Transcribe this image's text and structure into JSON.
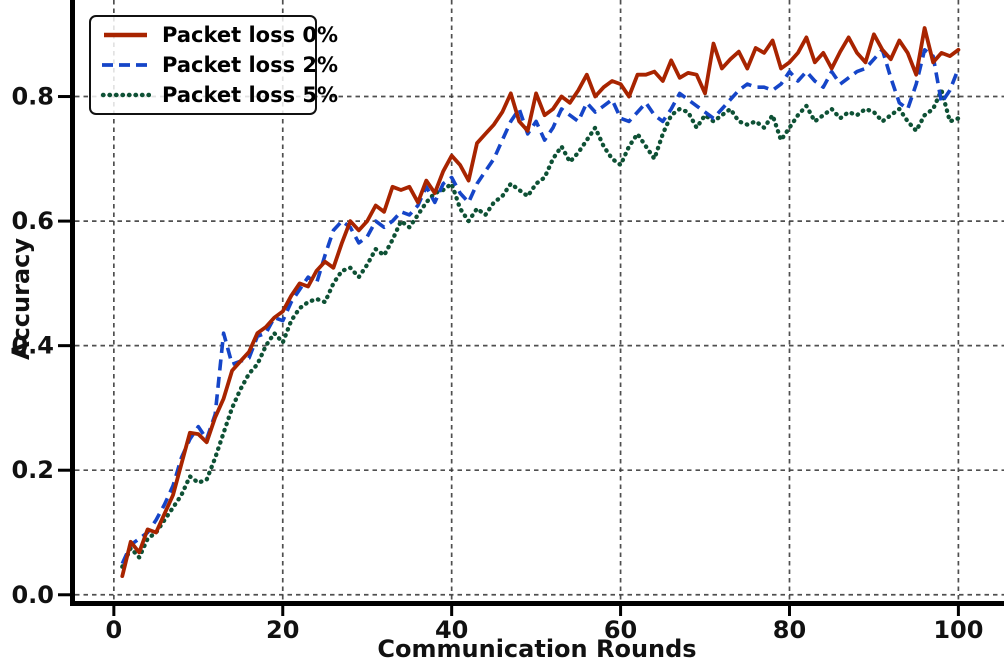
{
  "figure": {
    "background": "#ffffff",
    "grid_color": "#3d3d3d",
    "spine_color": "#000000",
    "text_color": "#111111"
  },
  "chart_data": {
    "type": "line",
    "title": "",
    "xlabel": "Communication Rounds",
    "ylabel": "Accuracy",
    "xlim": [
      -4.6,
      105.4
    ],
    "ylim": [
      -0.01,
      0.955
    ],
    "xticks": [
      0,
      20,
      40,
      60,
      80,
      100
    ],
    "xtick_labels": [
      "0",
      "20",
      "40",
      "60",
      "80",
      "100"
    ],
    "yticks": [
      0.0,
      0.2,
      0.4,
      0.6,
      0.8
    ],
    "ytick_labels": [
      "0.0",
      "0.2",
      "0.4",
      "0.6",
      "0.8"
    ],
    "grid": true,
    "grid_style": "dashed",
    "legend_position": "upper left",
    "x_first": 1,
    "x_step": 1,
    "series": [
      {
        "name": "Packet loss 0%",
        "color": "#a82400",
        "line_style": "solid",
        "values": [
          0.03,
          0.085,
          0.068,
          0.105,
          0.1,
          0.13,
          0.16,
          0.21,
          0.26,
          0.258,
          0.245,
          0.285,
          0.315,
          0.36,
          0.375,
          0.39,
          0.42,
          0.43,
          0.445,
          0.455,
          0.48,
          0.5,
          0.495,
          0.52,
          0.535,
          0.525,
          0.565,
          0.6,
          0.585,
          0.6,
          0.625,
          0.615,
          0.655,
          0.65,
          0.655,
          0.63,
          0.665,
          0.645,
          0.68,
          0.705,
          0.69,
          0.665,
          0.725,
          0.74,
          0.755,
          0.775,
          0.805,
          0.76,
          0.745,
          0.805,
          0.77,
          0.78,
          0.8,
          0.79,
          0.81,
          0.835,
          0.8,
          0.815,
          0.825,
          0.82,
          0.8,
          0.835,
          0.835,
          0.84,
          0.825,
          0.858,
          0.83,
          0.838,
          0.835,
          0.805,
          0.885,
          0.845,
          0.86,
          0.872,
          0.845,
          0.878,
          0.87,
          0.89,
          0.845,
          0.855,
          0.87,
          0.895,
          0.855,
          0.87,
          0.845,
          0.872,
          0.895,
          0.87,
          0.855,
          0.9,
          0.875,
          0.86,
          0.89,
          0.87,
          0.835,
          0.91,
          0.855,
          0.87,
          0.865,
          0.875
        ]
      },
      {
        "name": "Packet loss 2%",
        "color": "#1545c8",
        "line_style": "dashed",
        "values": [
          0.05,
          0.08,
          0.09,
          0.1,
          0.12,
          0.145,
          0.175,
          0.22,
          0.25,
          0.27,
          0.25,
          0.29,
          0.42,
          0.37,
          0.375,
          0.38,
          0.415,
          0.42,
          0.445,
          0.44,
          0.47,
          0.49,
          0.51,
          0.5,
          0.545,
          0.585,
          0.6,
          0.59,
          0.565,
          0.575,
          0.6,
          0.59,
          0.6,
          0.615,
          0.61,
          0.625,
          0.655,
          0.63,
          0.66,
          0.67,
          0.645,
          0.63,
          0.66,
          0.68,
          0.7,
          0.73,
          0.76,
          0.78,
          0.74,
          0.76,
          0.73,
          0.75,
          0.78,
          0.77,
          0.76,
          0.79,
          0.775,
          0.785,
          0.795,
          0.765,
          0.76,
          0.775,
          0.79,
          0.77,
          0.76,
          0.78,
          0.805,
          0.795,
          0.785,
          0.775,
          0.765,
          0.78,
          0.795,
          0.81,
          0.82,
          0.815,
          0.815,
          0.81,
          0.82,
          0.84,
          0.825,
          0.84,
          0.825,
          0.815,
          0.84,
          0.82,
          0.83,
          0.84,
          0.845,
          0.86,
          0.875,
          0.83,
          0.79,
          0.78,
          0.82,
          0.875,
          0.865,
          0.79,
          0.81,
          0.845
        ]
      },
      {
        "name": "Packet loss 5%",
        "color": "#0e5135",
        "line_style": "dotted",
        "values": [
          0.045,
          0.075,
          0.06,
          0.09,
          0.1,
          0.12,
          0.14,
          0.16,
          0.19,
          0.18,
          0.185,
          0.22,
          0.26,
          0.3,
          0.33,
          0.355,
          0.37,
          0.4,
          0.42,
          0.405,
          0.44,
          0.46,
          0.47,
          0.475,
          0.47,
          0.5,
          0.52,
          0.525,
          0.51,
          0.53,
          0.555,
          0.545,
          0.57,
          0.6,
          0.59,
          0.61,
          0.63,
          0.645,
          0.65,
          0.66,
          0.62,
          0.6,
          0.62,
          0.61,
          0.63,
          0.64,
          0.66,
          0.65,
          0.64,
          0.66,
          0.67,
          0.7,
          0.72,
          0.695,
          0.71,
          0.73,
          0.75,
          0.72,
          0.7,
          0.69,
          0.72,
          0.74,
          0.72,
          0.7,
          0.74,
          0.77,
          0.78,
          0.775,
          0.75,
          0.77,
          0.76,
          0.77,
          0.78,
          0.76,
          0.755,
          0.76,
          0.75,
          0.77,
          0.73,
          0.75,
          0.77,
          0.785,
          0.76,
          0.77,
          0.78,
          0.765,
          0.775,
          0.77,
          0.78,
          0.775,
          0.76,
          0.77,
          0.78,
          0.76,
          0.745,
          0.77,
          0.78,
          0.81,
          0.76,
          0.765
        ]
      }
    ]
  }
}
